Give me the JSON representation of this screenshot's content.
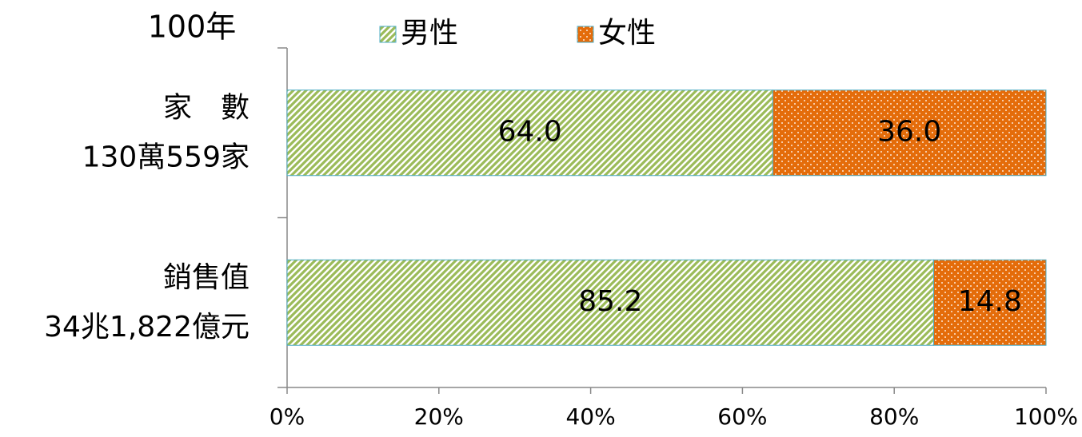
{
  "chart_data": {
    "type": "stacked_bar_horizontal",
    "title": "100年",
    "categories": [
      [
        "家　數",
        "130萬559家"
      ],
      [
        "銷售值",
        "34兆1,822億元"
      ]
    ],
    "series": [
      {
        "name": "男性",
        "color": "#9bbb59",
        "pattern": "diagonal",
        "values": [
          64.0,
          85.2
        ],
        "value_labels": [
          "64.0",
          "85.2"
        ]
      },
      {
        "name": "女性",
        "color": "#e46c0a",
        "pattern": "dots",
        "values": [
          36.0,
          14.8
        ],
        "value_labels": [
          "36.0",
          "14.8"
        ]
      }
    ],
    "xlim": [
      0,
      100
    ],
    "xticks": [
      {
        "value": 0,
        "label": "0%"
      },
      {
        "value": 20,
        "label": "20%"
      },
      {
        "value": 40,
        "label": "40%"
      },
      {
        "value": 60,
        "label": "60%"
      },
      {
        "value": 80,
        "label": "80%"
      },
      {
        "value": 100,
        "label": "100%"
      }
    ],
    "legend": "top"
  }
}
